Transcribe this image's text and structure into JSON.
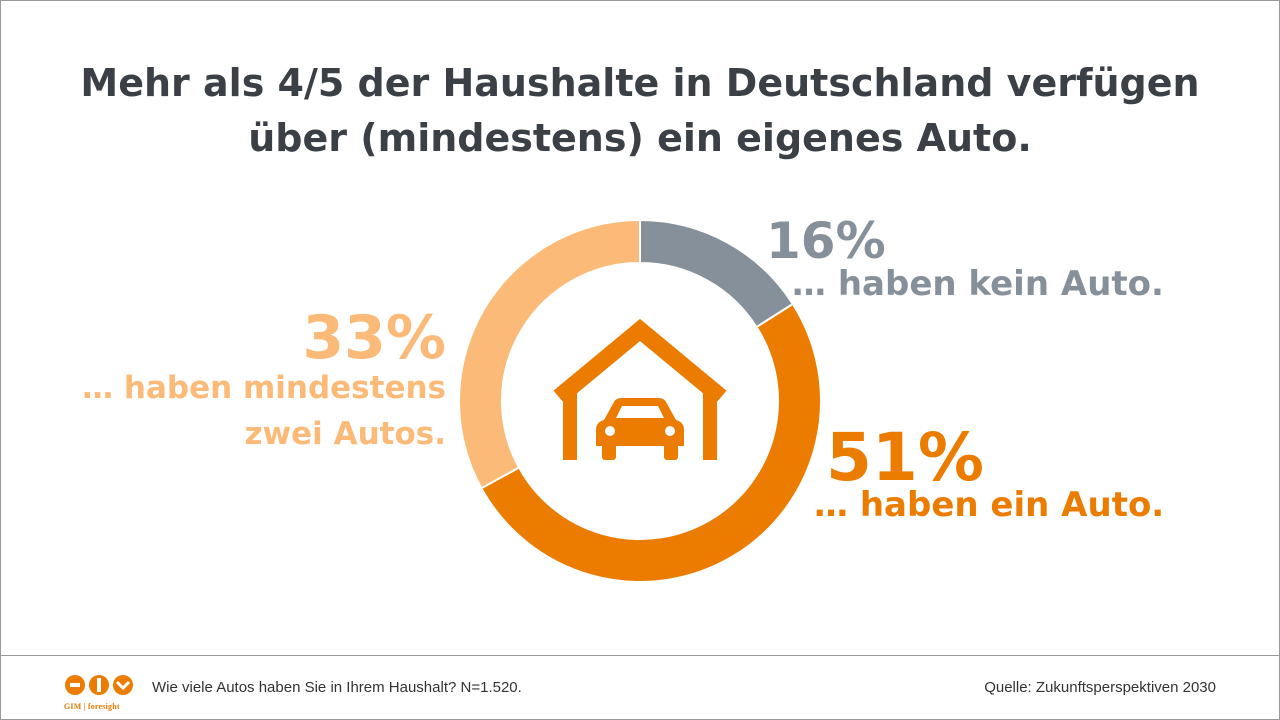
{
  "title": {
    "line1": "Mehr als 4/5 der Haushalte in Deutschland verfügen",
    "line2": "über (mindestens) ein eigenes Auto."
  },
  "chart_data": {
    "type": "pie",
    "donut": true,
    "slices": [
      {
        "label": "… haben kein Auto.",
        "value": 16,
        "value_label": "16%",
        "color": "#86909a"
      },
      {
        "label": "… haben ein Auto.",
        "value": 51,
        "value_label": "51%",
        "color": "#ec7c00"
      },
      {
        "label_line1": "… haben mindestens",
        "label_line2": "zwei Autos.",
        "value": 33,
        "value_label": "33%",
        "color": "#fbba78"
      }
    ],
    "center_icon": "garage-car-icon"
  },
  "footer": {
    "question": "Wie viele Autos haben Sie in Ihrem Haushalt? N=1.520.",
    "source": "Quelle: Zukunftsperspektiven  2030",
    "logo_text": "GIM | foresight",
    "logo_icon": "gim-logo-icon"
  }
}
